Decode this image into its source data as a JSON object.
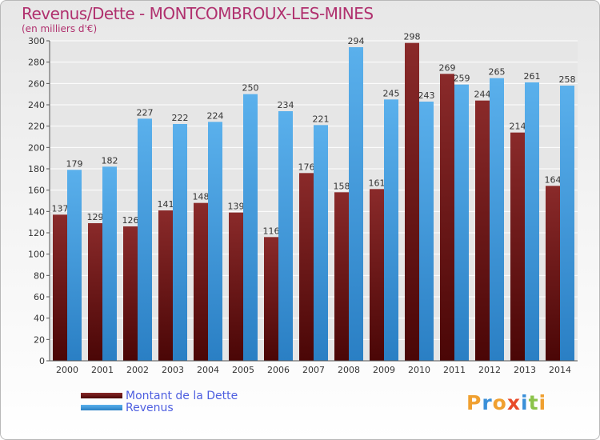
{
  "header": {
    "title": "Revenus/Dette - MONTCOMBROUX-LES-MINES",
    "subtitle": "(en milliers d'€)"
  },
  "colors": {
    "dette": "#7a1e1e",
    "revenus": "#4ea6e4",
    "title": "#b0306e",
    "legend_text": "#4e5fe0"
  },
  "legend": {
    "dette_label": "Montant de la Dette",
    "revenus_label": "Revenus"
  },
  "logo": {
    "text": "Proxiti",
    "letters": [
      {
        "char": "P",
        "color": "#f0a030"
      },
      {
        "char": "r",
        "color": "#3a8fd8"
      },
      {
        "char": "o",
        "color": "#f0a030"
      },
      {
        "char": "x",
        "color": "#e84a2a"
      },
      {
        "char": "i",
        "color": "#3a8fd8"
      },
      {
        "char": "t",
        "color": "#8bc34a"
      },
      {
        "char": "i",
        "color": "#f0a030"
      }
    ]
  },
  "chart_data": {
    "type": "bar",
    "title": "Revenus/Dette - MONTCOMBROUX-LES-MINES",
    "subtitle": "(en milliers d'€)",
    "categories": [
      "2000",
      "2001",
      "2002",
      "2003",
      "2004",
      "2005",
      "2006",
      "2007",
      "2008",
      "2009",
      "2010",
      "2011",
      "2012",
      "2013",
      "2014"
    ],
    "series": [
      {
        "name": "Montant de la Dette",
        "values": [
          137,
          129,
          126,
          141,
          148,
          139,
          116,
          176,
          158,
          161,
          298,
          269,
          244,
          214,
          164
        ]
      },
      {
        "name": "Revenus",
        "values": [
          179,
          182,
          227,
          222,
          224,
          250,
          234,
          221,
          294,
          245,
          243,
          259,
          265,
          261,
          258
        ]
      }
    ],
    "ylim": [
      0,
      300
    ],
    "yticks": [
      0,
      20,
      40,
      60,
      80,
      100,
      120,
      140,
      160,
      180,
      200,
      220,
      240,
      260,
      280,
      300
    ],
    "grid": true,
    "legend_position": "bottom-left"
  }
}
